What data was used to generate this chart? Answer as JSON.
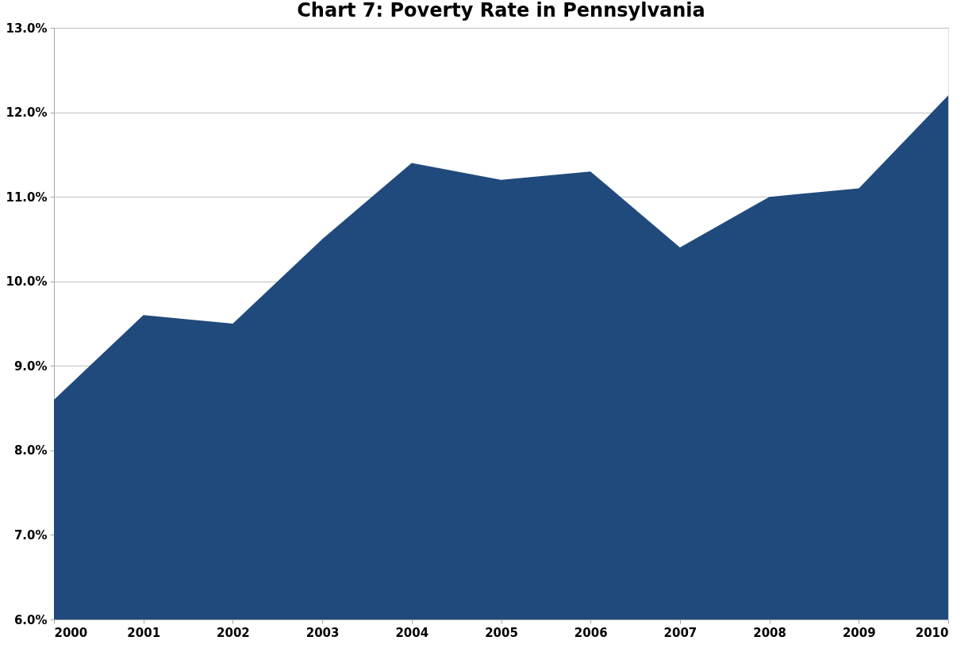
{
  "chart_data": {
    "type": "area",
    "title": "Chart 7: Poverty Rate in Pennsylvania",
    "categories": [
      "2000",
      "2001",
      "2002",
      "2003",
      "2004",
      "2005",
      "2006",
      "2007",
      "2008",
      "2009",
      "2010"
    ],
    "series": [
      {
        "color": "#214a7c",
        "values": [
          8.6,
          9.6,
          9.5,
          10.5,
          11.4,
          11.2,
          11.3,
          10.4,
          11.0,
          11.1,
          12.2
        ]
      }
    ],
    "ylim": [
      6,
      13
    ],
    "yticks": [
      {
        "value": 6,
        "label": "6.0%"
      },
      {
        "value": 7,
        "label": "7.0%"
      },
      {
        "value": 8,
        "label": "8.0%"
      },
      {
        "value": 9,
        "label": "9.0%"
      },
      {
        "value": 10,
        "label": "10.0%"
      },
      {
        "value": 11,
        "label": "11.0%"
      },
      {
        "value": 12,
        "label": "12.0%"
      },
      {
        "value": 13,
        "label": "13.0%"
      }
    ],
    "grid": "y"
  }
}
